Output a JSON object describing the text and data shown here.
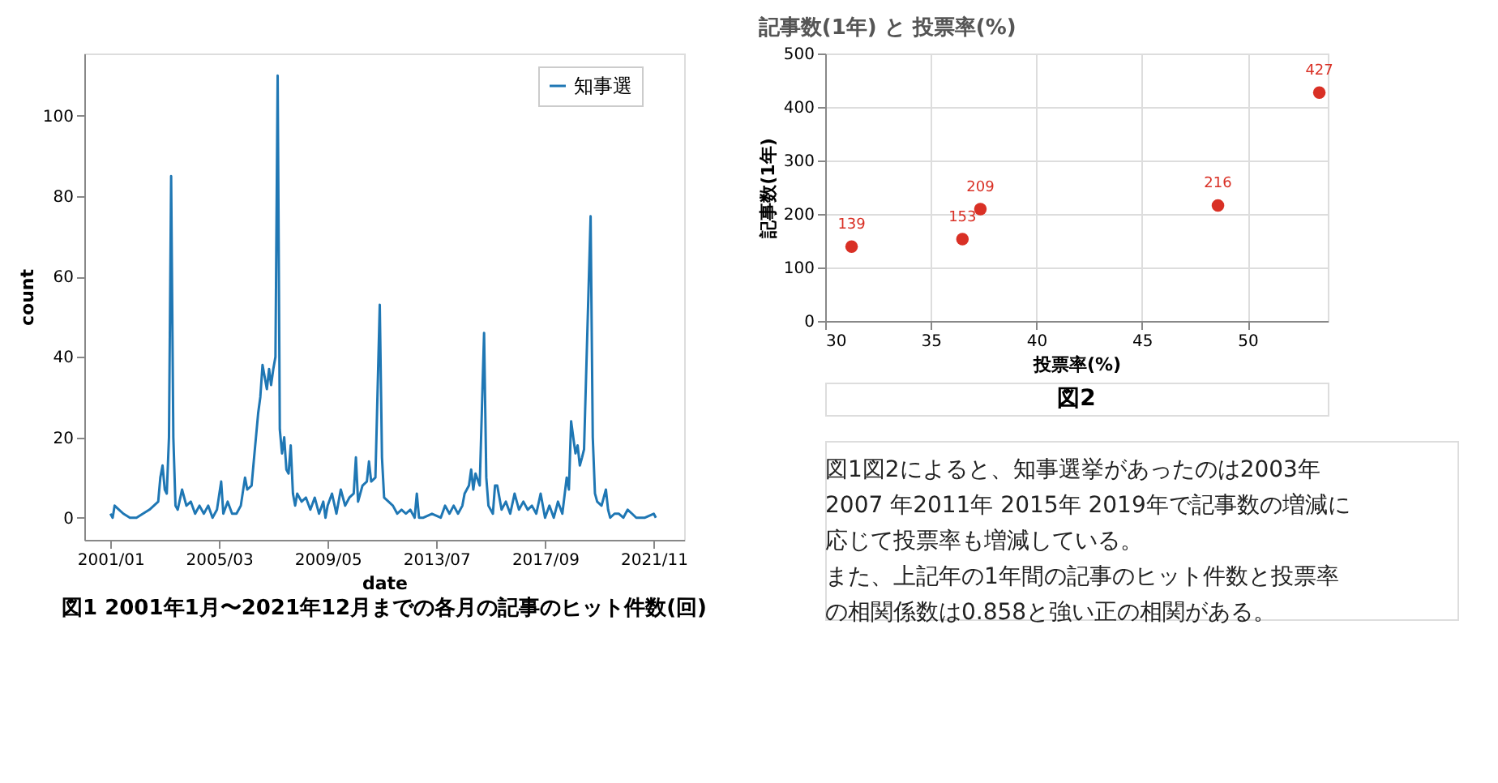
{
  "chart_data": [
    {
      "type": "line",
      "xlabel": "date",
      "ylabel": "count",
      "legend": "top right",
      "grid": false,
      "xlim": [
        "2000-01",
        "2023-01"
      ],
      "ylim": [
        -5.5,
        115.5
      ],
      "xticks": [
        {
          "value": "2001-01",
          "label": "2001/01"
        },
        {
          "value": "2005-03",
          "label": "2005/03"
        },
        {
          "value": "2009-05",
          "label": "2009/05"
        },
        {
          "value": "2013-07",
          "label": "2013/07"
        },
        {
          "value": "2017-09",
          "label": "2017/09"
        },
        {
          "value": "2021-11",
          "label": "2021/11"
        }
      ],
      "yticks": [
        0,
        20,
        40,
        60,
        80,
        100
      ],
      "annotations": [
        "図1 2001年1月〜2021年12月までの各月の記事のヒット件数(回)"
      ],
      "x": [
        "2001-01",
        "2001-02",
        "2001-03",
        "2001-05",
        "2001-07",
        "2001-10",
        "2002-01",
        "2002-04",
        "2002-07",
        "2002-09",
        "2002-11",
        "2002-12",
        "2003-01",
        "2003-02",
        "2003-03",
        "2003-04",
        "2003-05",
        "2003-06",
        "2003-07",
        "2003-08",
        "2003-10",
        "2003-12",
        "2004-02",
        "2004-04",
        "2004-06",
        "2004-08",
        "2004-10",
        "2004-12",
        "2005-02",
        "2005-04",
        "2005-05",
        "2005-07",
        "2005-09",
        "2005-11",
        "2006-01",
        "2006-03",
        "2006-04",
        "2006-06",
        "2006-07",
        "2006-09",
        "2006-10",
        "2006-11",
        "2007-01",
        "2007-02",
        "2007-03",
        "2007-04",
        "2007-05",
        "2007-06",
        "2007-07",
        "2007-08",
        "2007-09",
        "2007-10",
        "2007-11",
        "2007-12",
        "2008-01",
        "2008-02",
        "2008-03",
        "2008-05",
        "2008-07",
        "2008-09",
        "2008-11",
        "2009-01",
        "2009-03",
        "2009-04",
        "2009-05",
        "2009-07",
        "2009-09",
        "2009-11",
        "2010-01",
        "2010-03",
        "2010-05",
        "2010-06",
        "2010-07",
        "2010-09",
        "2010-11",
        "2010-12",
        "2011-01",
        "2011-03",
        "2011-05",
        "2011-06",
        "2011-07",
        "2011-09",
        "2011-11",
        "2012-01",
        "2012-03",
        "2012-05",
        "2012-07",
        "2012-09",
        "2012-10",
        "2012-11",
        "2013-01",
        "2013-05",
        "2013-09",
        "2013-11",
        "2014-01",
        "2014-03",
        "2014-05",
        "2014-07",
        "2014-08",
        "2014-10",
        "2014-11",
        "2014-12",
        "2015-01",
        "2015-03",
        "2015-05",
        "2015-06",
        "2015-07",
        "2015-09",
        "2015-10",
        "2015-11",
        "2016-01",
        "2016-03",
        "2016-05",
        "2016-07",
        "2016-09",
        "2016-11",
        "2017-01",
        "2017-03",
        "2017-05",
        "2017-07",
        "2017-09",
        "2017-11",
        "2018-01",
        "2018-03",
        "2018-05",
        "2018-07",
        "2018-08",
        "2018-09",
        "2018-10",
        "2018-11",
        "2018-12",
        "2019-01",
        "2019-02",
        "2019-03",
        "2019-06",
        "2019-07",
        "2019-08",
        "2019-09",
        "2019-11",
        "2020-01",
        "2020-02",
        "2020-03",
        "2020-05",
        "2020-07",
        "2020-09",
        "2020-11",
        "2021-01",
        "2021-03",
        "2021-07",
        "2021-11",
        "2021-12"
      ],
      "series": [
        {
          "name": "知事選",
          "color": "#1f77b4",
          "values": [
            1,
            0,
            3,
            2,
            1,
            0,
            0,
            1,
            2,
            3,
            4,
            10,
            13,
            7,
            6,
            20,
            85,
            20,
            3,
            2,
            7,
            3,
            4,
            1,
            3,
            1,
            3,
            0,
            2,
            9,
            1,
            4,
            1,
            1,
            3,
            10,
            7,
            8,
            14,
            26,
            30,
            38,
            32,
            37,
            33,
            37,
            40,
            110,
            22,
            16,
            20,
            12,
            11,
            18,
            6,
            3,
            6,
            4,
            5,
            2,
            5,
            1,
            4,
            0,
            3,
            6,
            1,
            7,
            3,
            5,
            6,
            15,
            4,
            8,
            9,
            14,
            9,
            10,
            53,
            15,
            5,
            4,
            3,
            1,
            2,
            1,
            2,
            0,
            6,
            0,
            0,
            1,
            0,
            3,
            1,
            3,
            1,
            3,
            6,
            8,
            12,
            7,
            11,
            8,
            46,
            10,
            3,
            1,
            8,
            8,
            2,
            4,
            1,
            6,
            2,
            4,
            2,
            3,
            1,
            6,
            0,
            3,
            0,
            4,
            1,
            10,
            7,
            24,
            20,
            16,
            18,
            13,
            15,
            17,
            75,
            20,
            6,
            4,
            3,
            7,
            2,
            0,
            1,
            1,
            0,
            2,
            1,
            0,
            0,
            1,
            0
          ]
        }
      ]
    },
    {
      "type": "scatter",
      "title": "記事数(1年) と 投票率(%)",
      "xlabel": "投票率(%)",
      "ylabel": "記事数(1年)",
      "grid": true,
      "data_labels": true,
      "marker": "circle",
      "xlim": [
        30,
        53.8
      ],
      "ylim": [
        0,
        500
      ],
      "xticks": [
        30,
        35,
        40,
        45,
        50
      ],
      "yticks": [
        0,
        100,
        200,
        300,
        400,
        500
      ],
      "annotations": [
        "図2"
      ],
      "x": [
        31.25,
        36.5,
        37.35,
        48.6,
        53.4
      ],
      "series": [
        {
          "color": "#d93025",
          "values": [
            139,
            153,
            209,
            216,
            427
          ]
        }
      ]
    },
    {
      "type": "other",
      "annotations": [
        "図1図2によると、知事選挙があったのは2003年",
        "2007 年2011年 2015年 2019年で記事数の増減に",
        "応じて投票率も増減している。",
        "また、上記年の1年間の記事のヒット件数と投票率",
        "の相関係数は0.858と強い正の相関がある。"
      ]
    }
  ]
}
